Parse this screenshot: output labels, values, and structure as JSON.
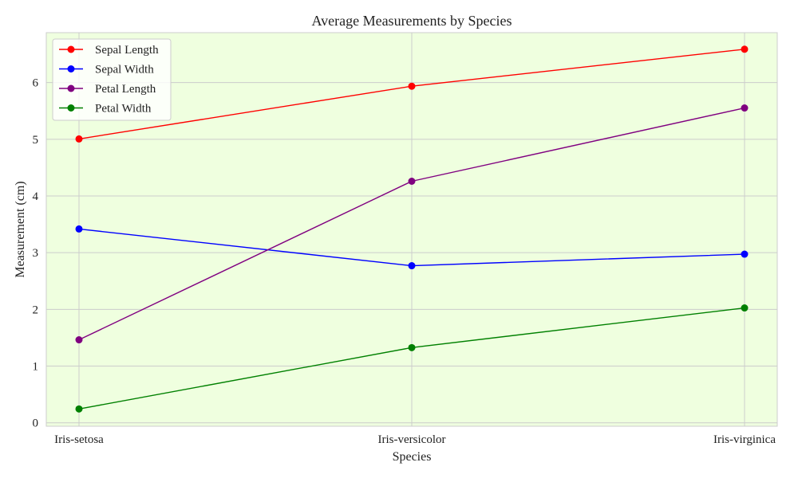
{
  "chart_data": {
    "type": "line",
    "title": "Average Measurements by Species",
    "xlabel": "Species",
    "ylabel": "Measurement (cm)",
    "categories": [
      "Iris-setosa",
      "Iris-versicolor",
      "Iris-virginica"
    ],
    "ylim": [
      -0.06,
      6.88
    ],
    "yticks": [
      0,
      1,
      2,
      3,
      4,
      5,
      6
    ],
    "grid": true,
    "legend_position": "top-left",
    "plot_background": "#efffdf",
    "grid_color": "#cccccc",
    "series": [
      {
        "name": "Sepal Length",
        "color": "#ff0000",
        "values": [
          5.006,
          5.936,
          6.588
        ]
      },
      {
        "name": "Sepal Width",
        "color": "#0000ff",
        "values": [
          3.418,
          2.77,
          2.974
        ]
      },
      {
        "name": "Petal Length",
        "color": "#800080",
        "values": [
          1.464,
          4.26,
          5.552
        ]
      },
      {
        "name": "Petal Width",
        "color": "#008000",
        "values": [
          0.244,
          1.326,
          2.026
        ]
      }
    ]
  }
}
